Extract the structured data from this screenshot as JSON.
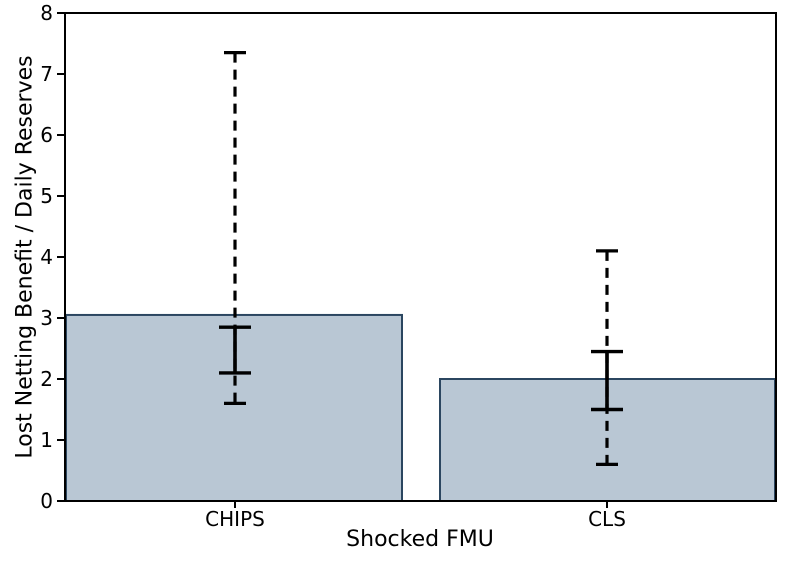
{
  "chart_data": {
    "type": "bar",
    "title": "",
    "xlabel": "Shocked FMU",
    "ylabel": "Lost Netting Benefit / Daily Reserves",
    "categories": [
      "CHIPS",
      "CLS"
    ],
    "values": [
      3.05,
      2.0
    ],
    "error_bars": [
      {
        "category": "CHIPS",
        "solid_low": 2.1,
        "solid_high": 2.85,
        "dashed_low": 1.6,
        "dashed_high": 7.35
      },
      {
        "category": "CLS",
        "solid_low": 1.5,
        "solid_high": 2.45,
        "dashed_low": 0.6,
        "dashed_high": 4.1
      }
    ],
    "ylim": [
      0,
      8
    ],
    "yticks": [
      "0",
      "1",
      "2",
      "3",
      "4",
      "5",
      "6",
      "7",
      "8"
    ],
    "grid": false,
    "legend": false,
    "colors": {
      "bar_fill": "#b9c7d4",
      "bar_edge": "#2b4660",
      "error_bar": "#000000",
      "axis": "#000000",
      "background": "#ffffff"
    }
  }
}
